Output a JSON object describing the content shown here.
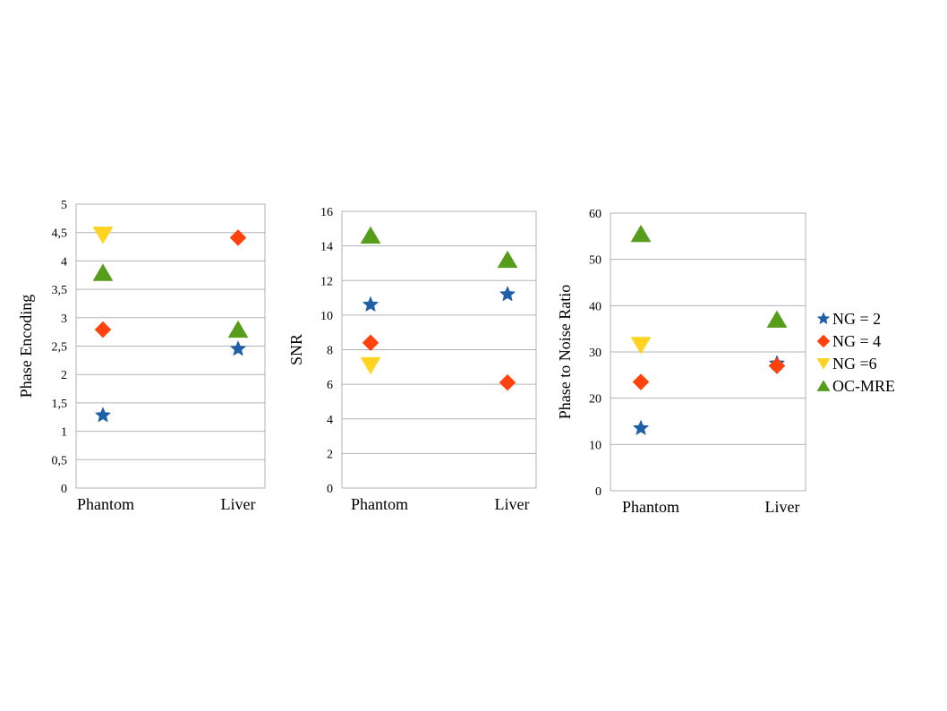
{
  "chart_data": [
    {
      "type": "scatter",
      "categories": [
        "Phantom",
        "Liver"
      ],
      "ylabel": "Phase Encoding",
      "ylim": [
        0,
        5
      ],
      "yticks": [
        "0",
        "0,5",
        "1",
        "1,5",
        "2",
        "2,5",
        "3",
        "3,5",
        "4",
        "4,5",
        "5"
      ],
      "grid": true,
      "series": [
        {
          "name": "NG = 2",
          "values": [
            1.28,
            2.45
          ]
        },
        {
          "name": "NG = 4",
          "values": [
            2.79,
            4.41
          ]
        },
        {
          "name": "NG =6",
          "values": [
            4.46,
            null
          ]
        },
        {
          "name": "OC-MRE",
          "values": [
            3.79,
            2.79
          ]
        }
      ]
    },
    {
      "type": "scatter",
      "categories": [
        "Phantom",
        "Liver"
      ],
      "ylabel": "SNR",
      "ylim": [
        0,
        16
      ],
      "yticks": [
        "0",
        "2",
        "4",
        "6",
        "8",
        "10",
        "12",
        "14",
        "16"
      ],
      "grid": true,
      "series": [
        {
          "name": "NG = 2",
          "values": [
            10.6,
            11.2
          ]
        },
        {
          "name": "NG = 4",
          "values": [
            8.4,
            6.1
          ]
        },
        {
          "name": "NG =6",
          "values": [
            7.1,
            null
          ]
        },
        {
          "name": "OC-MRE",
          "values": [
            14.6,
            13.2
          ]
        }
      ]
    },
    {
      "type": "scatter",
      "categories": [
        "Phantom",
        "Liver"
      ],
      "ylabel": "Phase to Noise Ratio",
      "ylim": [
        0,
        60
      ],
      "yticks": [
        "0",
        "10",
        "20",
        "30",
        "40",
        "50",
        "60"
      ],
      "grid": true,
      "series": [
        {
          "name": "NG = 2",
          "values": [
            13.5,
            27.5
          ]
        },
        {
          "name": "NG = 4",
          "values": [
            23.5,
            27.0
          ]
        },
        {
          "name": "NG =6",
          "values": [
            31.5,
            null
          ]
        },
        {
          "name": "OC-MRE",
          "values": [
            55.5,
            37.0
          ]
        }
      ]
    }
  ],
  "legend": {
    "placement": "right",
    "entries": [
      {
        "label": "NG = 2",
        "marker": "star-icon",
        "color": "#1f5fa8"
      },
      {
        "label": "NG = 4",
        "marker": "diamond-icon",
        "color": "#ff420e"
      },
      {
        "label": "NG =6",
        "marker": "triangle-down-icon",
        "color": "#ffd320"
      },
      {
        "label": "OC-MRE",
        "marker": "triangle-up-icon",
        "color": "#579d1c"
      }
    ]
  }
}
